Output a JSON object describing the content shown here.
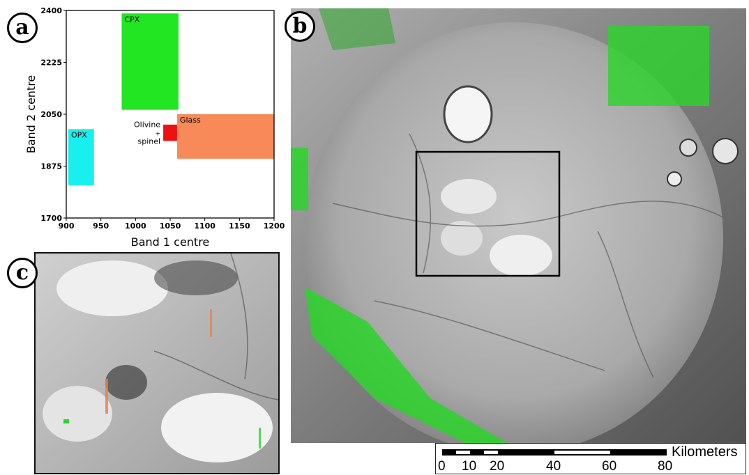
{
  "panels": {
    "a": "a",
    "b": "b",
    "c": "c"
  },
  "chart_data": {
    "type": "scatter",
    "title": "",
    "xlabel": "Band 1 centre",
    "ylabel": "Band 2 centre",
    "xlim": [
      900,
      1200
    ],
    "ylim": [
      1700,
      2400
    ],
    "xticks": [
      900,
      950,
      1000,
      1050,
      1100,
      1150,
      1200
    ],
    "yticks": [
      1700,
      1875,
      2050,
      2225,
      2400
    ],
    "grid": false,
    "legend": "none",
    "regions": [
      {
        "name": "CPX",
        "label": "CPX",
        "x": [
          980,
          1062
        ],
        "y": [
          2065,
          2390
        ],
        "color": "#22e622",
        "label_pos": "inside-top-left"
      },
      {
        "name": "OPX",
        "label": "OPX",
        "x": [
          903,
          940
        ],
        "y": [
          1810,
          2000
        ],
        "color": "#18f0f0",
        "label_pos": "inside-top-left"
      },
      {
        "name": "Glass",
        "label": "Glass",
        "x": [
          1060,
          1200
        ],
        "y": [
          1900,
          2050
        ],
        "color": "#f88a5a",
        "label_pos": "inside-top-left"
      },
      {
        "name": "Olivine + spinel",
        "label": "Olivine\n+\nspinel",
        "x": [
          1040,
          1060
        ],
        "y": [
          1960,
          2015
        ],
        "color": "#ee1111",
        "label_pos": "left"
      }
    ]
  },
  "scalebar": {
    "title": "Kilometers",
    "ticks": [
      "0",
      "10",
      "20",
      "40",
      "60",
      "80"
    ],
    "tick_values": [
      0,
      10,
      20,
      40,
      60,
      80
    ]
  }
}
